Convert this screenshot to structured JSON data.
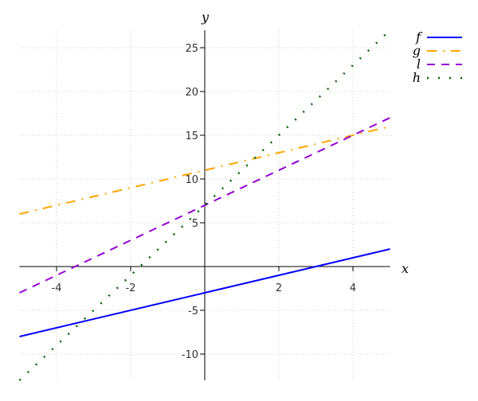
{
  "chart_data": {
    "type": "line",
    "title": "",
    "xlabel": "x",
    "ylabel": "y",
    "xlim": [
      -5,
      5
    ],
    "ylim": [
      -13,
      27
    ],
    "grid": true,
    "legend_position": "top-right-outside",
    "x_ticks": [
      -4,
      -2,
      2,
      4
    ],
    "y_ticks": [
      -10,
      -5,
      5,
      10,
      15,
      20,
      25
    ],
    "series": [
      {
        "name": "f",
        "expr": "x - 3",
        "slope": 1,
        "intercept": -3,
        "color": "#0000ff",
        "style": "solid",
        "x": [
          -5,
          5
        ],
        "values": [
          -8,
          2
        ]
      },
      {
        "name": "g",
        "expr": "x + 11",
        "slope": 1,
        "intercept": 11,
        "color": "#ffa500",
        "style": "dashdot",
        "x": [
          -5,
          5
        ],
        "values": [
          6,
          16
        ]
      },
      {
        "name": "l",
        "expr": "2x + 7",
        "slope": 2,
        "intercept": 7,
        "color": "#9400d3",
        "style": "dashed",
        "x": [
          -5,
          5
        ],
        "values": [
          -3,
          17
        ]
      },
      {
        "name": "h",
        "expr": "4x + 7",
        "slope": 4,
        "intercept": 7,
        "color": "#006400",
        "style": "dotted",
        "x": [
          -5,
          5
        ],
        "values": [
          -13,
          27
        ]
      }
    ]
  }
}
